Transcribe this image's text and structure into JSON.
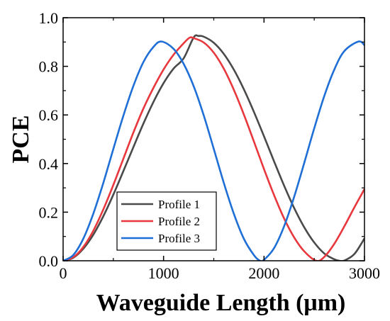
{
  "chart_data": {
    "type": "line",
    "xlabel": "Waveguide Length (μm)",
    "ylabel": "PCE",
    "xlim": [
      0,
      3000
    ],
    "ylim": [
      0,
      1.0
    ],
    "xticks": [
      0,
      1000,
      2000,
      3000
    ],
    "xtick_labels": [
      "0",
      "1000",
      "2000",
      "3000"
    ],
    "yticks": [
      0.0,
      0.2,
      0.4,
      0.6,
      0.8,
      1.0
    ],
    "ytick_labels": [
      "0.0",
      "0.2",
      "0.4",
      "0.6",
      "0.8",
      "1.0"
    ],
    "grid": false,
    "legend_position": "bottom-center",
    "series": [
      {
        "name": "Profile 1",
        "color": "#4a4a4a",
        "x": [
          0,
          100,
          200,
          300,
          400,
          500,
          600,
          700,
          800,
          900,
          1000,
          1100,
          1200,
          1300,
          1350,
          1400,
          1500,
          1600,
          1700,
          1800,
          1900,
          2000,
          2100,
          2200,
          2300,
          2400,
          2500,
          2600,
          2700,
          2750,
          2800,
          2900,
          3000
        ],
        "y": [
          0.0,
          0.012,
          0.049,
          0.107,
          0.183,
          0.272,
          0.369,
          0.468,
          0.565,
          0.654,
          0.731,
          0.791,
          0.833,
          0.919,
          0.925,
          0.922,
          0.897,
          0.851,
          0.786,
          0.705,
          0.612,
          0.512,
          0.409,
          0.309,
          0.217,
          0.138,
          0.075,
          0.03,
          0.006,
          0.0,
          0.001,
          0.028,
          0.092
        ]
      },
      {
        "name": "Profile 2",
        "color": "#e8383d",
        "x": [
          0,
          100,
          200,
          300,
          400,
          500,
          600,
          700,
          800,
          900,
          1000,
          1100,
          1200,
          1260,
          1300,
          1400,
          1500,
          1600,
          1700,
          1800,
          1900,
          2000,
          2100,
          2200,
          2300,
          2400,
          2520,
          2600,
          2700,
          2800,
          2900,
          3000
        ],
        "y": [
          0.0,
          0.014,
          0.056,
          0.123,
          0.211,
          0.312,
          0.42,
          0.528,
          0.627,
          0.712,
          0.787,
          0.848,
          0.895,
          0.918,
          0.916,
          0.898,
          0.856,
          0.79,
          0.703,
          0.601,
          0.49,
          0.377,
          0.27,
          0.174,
          0.096,
          0.039,
          0.0,
          0.016,
          0.07,
          0.142,
          0.22,
          0.295
        ]
      },
      {
        "name": "Profile 3",
        "color": "#1f6fd6",
        "x": [
          0,
          100,
          200,
          300,
          400,
          500,
          600,
          700,
          800,
          900,
          980,
          1100,
          1200,
          1300,
          1400,
          1500,
          1600,
          1700,
          1800,
          1900,
          1960,
          2000,
          2100,
          2200,
          2300,
          2400,
          2500,
          2600,
          2700,
          2800,
          2940,
          3000
        ],
        "y": [
          0.0,
          0.023,
          0.09,
          0.193,
          0.32,
          0.46,
          0.597,
          0.72,
          0.818,
          0.88,
          0.902,
          0.872,
          0.81,
          0.718,
          0.598,
          0.46,
          0.32,
          0.193,
          0.09,
          0.023,
          0.0,
          0.004,
          0.052,
          0.142,
          0.263,
          0.402,
          0.545,
          0.678,
          0.787,
          0.863,
          0.902,
          0.887
        ]
      }
    ]
  }
}
